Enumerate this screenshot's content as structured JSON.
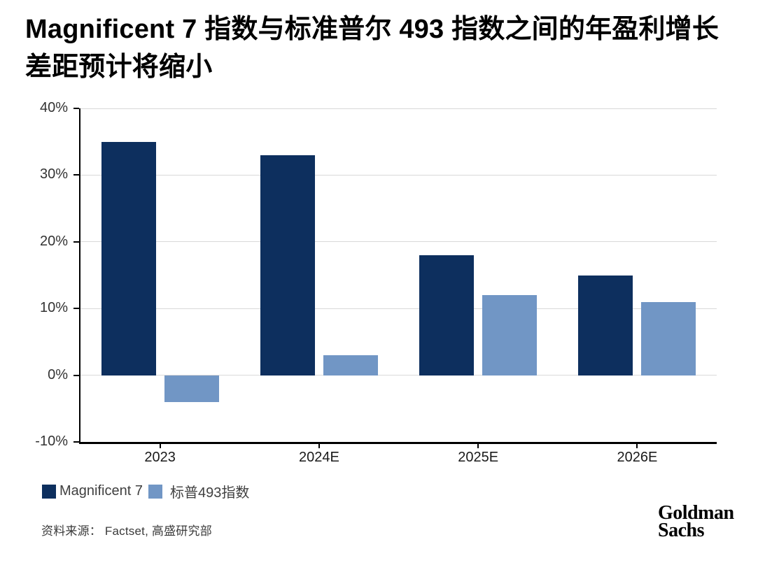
{
  "title": "Magnificent 7 指数与标准普尔 493 指数之间的年盈利增长差距预计将缩小",
  "title_lines": [
    "Magnificent 7 指数与标准普尔 493 指数之间的年盈利增长",
    "差距预计将缩小"
  ],
  "chart_data": {
    "type": "bar",
    "title": "Magnificent 7 指数与标准普尔 493 指数之间的年盈利增长差距预计将缩小",
    "categories": [
      "2023",
      "2024E",
      "2025E",
      "2026E"
    ],
    "series": [
      {
        "name": "Magnificent 7",
        "color": "#0d2f5e",
        "values": [
          35,
          33,
          18,
          15
        ]
      },
      {
        "name": "标普493指数",
        "color": "#7196c5",
        "values": [
          -4,
          3,
          12,
          11
        ]
      }
    ],
    "xlabel": "",
    "ylabel": "",
    "ylim": [
      -10,
      40
    ],
    "ytick_step": 10,
    "ytick_label_suffix": "%",
    "grid": true,
    "legend_position": "bottom-left"
  },
  "source_note": "资料来源： Factset, 高盛研究部",
  "logo": {
    "line1": "Goldman",
    "line2": "Sachs"
  },
  "colors": {
    "axis": "#000000",
    "gridline": "#d9d9d9",
    "tick_label": "#333333",
    "legend_text": "#404040"
  }
}
